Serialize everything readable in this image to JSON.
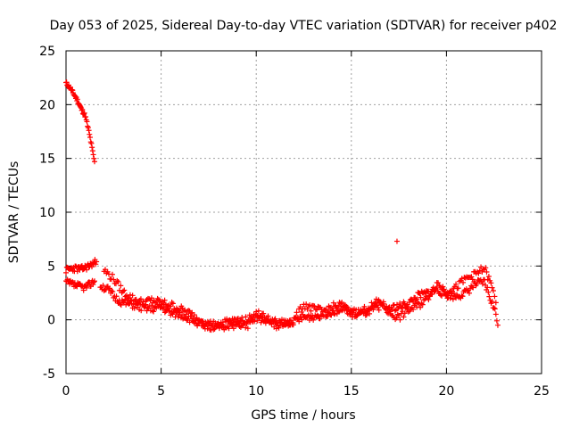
{
  "chart_data": {
    "type": "scatter",
    "title": "Day 053 of 2025, Sidereal Day-to-day VTEC variation (SDTVAR) for receiver p402",
    "xlabel": "GPS time / hours",
    "ylabel": "SDTVAR / TECUs",
    "xlim": [
      0,
      25
    ],
    "ylim": [
      -5,
      25
    ],
    "xticks": [
      0,
      5,
      10,
      15,
      20,
      25
    ],
    "yticks": [
      -5,
      0,
      5,
      10,
      15,
      20,
      25
    ],
    "grid": true,
    "marker": "+",
    "color": "#ff0000",
    "series": [
      {
        "name": "SDTVAR",
        "trace_upper": [
          [
            0.0,
            22.0
          ],
          [
            0.2,
            21.6
          ],
          [
            0.4,
            21.0
          ],
          [
            0.6,
            20.4
          ],
          [
            0.8,
            19.6
          ],
          [
            1.0,
            19.0
          ],
          [
            1.1,
            18.3
          ],
          [
            1.2,
            17.5
          ],
          [
            1.3,
            16.6
          ],
          [
            1.4,
            15.6
          ],
          [
            1.5,
            14.7
          ]
        ],
        "trace_mid_a": [
          [
            0.0,
            4.6
          ],
          [
            0.4,
            4.8
          ],
          [
            0.8,
            4.7
          ],
          [
            1.2,
            5.0
          ],
          [
            1.6,
            5.4
          ]
        ],
        "trace_mid_b": [
          [
            0.0,
            3.5
          ],
          [
            0.5,
            3.2
          ],
          [
            1.0,
            3.0
          ],
          [
            1.5,
            3.6
          ]
        ],
        "trace_main": [
          [
            1.8,
            3.2
          ],
          [
            2.2,
            2.8
          ],
          [
            2.6,
            2.0
          ],
          [
            3.0,
            1.6
          ],
          [
            3.5,
            1.4
          ],
          [
            4.0,
            1.1
          ],
          [
            4.5,
            1.0
          ],
          [
            5.0,
            1.2
          ],
          [
            5.5,
            0.6
          ],
          [
            6.0,
            0.5
          ],
          [
            6.5,
            0.1
          ],
          [
            7.0,
            -0.3
          ],
          [
            7.5,
            -0.5
          ],
          [
            8.0,
            -0.4
          ],
          [
            8.5,
            -0.2
          ],
          [
            9.0,
            -0.1
          ],
          [
            9.5,
            0.1
          ],
          [
            10.0,
            0.2
          ],
          [
            10.5,
            -0.1
          ],
          [
            11.0,
            -0.2
          ],
          [
            11.5,
            -0.3
          ],
          [
            12.0,
            -0.1
          ],
          [
            12.5,
            0.2
          ],
          [
            13.0,
            0.3
          ],
          [
            13.5,
            0.5
          ],
          [
            14.0,
            0.8
          ],
          [
            14.5,
            1.0
          ],
          [
            15.0,
            0.8
          ],
          [
            15.5,
            0.5
          ],
          [
            16.0,
            0.8
          ],
          [
            16.5,
            1.3
          ],
          [
            17.0,
            1.1
          ],
          [
            17.5,
            1.2
          ],
          [
            18.0,
            1.5
          ],
          [
            18.5,
            2.2
          ],
          [
            19.0,
            2.5
          ],
          [
            19.5,
            2.8
          ],
          [
            20.0,
            2.3
          ],
          [
            20.5,
            2.2
          ],
          [
            21.0,
            2.5
          ],
          [
            21.5,
            3.3
          ],
          [
            22.0,
            3.5
          ],
          [
            22.3,
            2.0
          ],
          [
            22.6,
            0.5
          ],
          [
            22.7,
            -0.5
          ]
        ],
        "trace_secondary": [
          [
            2.0,
            4.6
          ],
          [
            2.5,
            3.8
          ],
          [
            3.0,
            2.6
          ],
          [
            3.5,
            2.0
          ],
          [
            4.0,
            1.6
          ],
          [
            4.5,
            1.8
          ],
          [
            5.0,
            1.6
          ],
          [
            5.5,
            1.4
          ],
          [
            6.0,
            1.0
          ],
          [
            6.5,
            0.6
          ],
          [
            7.0,
            0.0
          ],
          [
            7.5,
            -0.8
          ],
          [
            8.0,
            -0.6
          ],
          [
            8.5,
            -0.8
          ],
          [
            9.0,
            -0.3
          ],
          [
            9.5,
            -0.6
          ],
          [
            10.0,
            0.6
          ],
          [
            10.5,
            0.2
          ],
          [
            11.0,
            -0.6
          ],
          [
            11.5,
            -0.4
          ],
          [
            12.0,
            0.0
          ],
          [
            12.5,
            1.4
          ],
          [
            13.0,
            1.0
          ],
          [
            13.5,
            0.8
          ],
          [
            14.0,
            1.2
          ],
          [
            14.5,
            1.4
          ],
          [
            15.0,
            0.5
          ],
          [
            15.5,
            0.8
          ],
          [
            16.0,
            1.2
          ],
          [
            16.5,
            1.8
          ],
          [
            17.0,
            0.6
          ],
          [
            17.5,
            0.2
          ],
          [
            18.0,
            0.9
          ],
          [
            18.5,
            1.3
          ],
          [
            19.0,
            2.0
          ],
          [
            19.5,
            3.4
          ],
          [
            20.0,
            2.7
          ],
          [
            20.5,
            3.0
          ],
          [
            21.0,
            3.8
          ],
          [
            21.5,
            4.2
          ],
          [
            22.0,
            4.8
          ],
          [
            22.4,
            3.0
          ],
          [
            22.6,
            1.6
          ]
        ],
        "outliers": [
          [
            17.4,
            7.3
          ]
        ]
      }
    ]
  }
}
